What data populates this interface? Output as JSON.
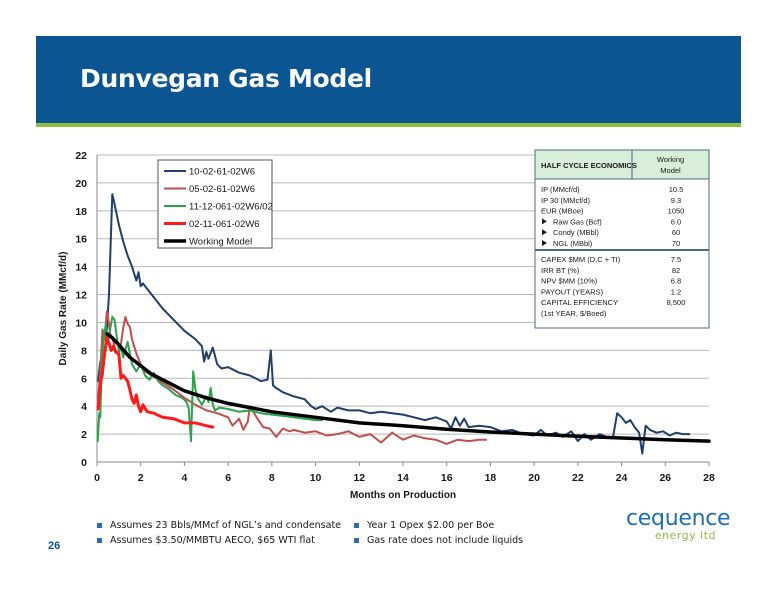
{
  "slide": {
    "title": "Dunvegan Gas Model",
    "page_number": "26",
    "notes_left": [
      "Assumes 23 Bbls/MMcf of NGL’s and condensate",
      "Assumes $3.50/MMBTU AECO, $65 WTI flat"
    ],
    "notes_right": [
      "Year 1 Opex $2.00 per Boe",
      "Gas rate does not include liquids"
    ],
    "logo_main": "cequence",
    "logo_sub": "energy ltd",
    "colors": {
      "header": "#0c5593",
      "accent": "#8dbf3f"
    }
  },
  "chart_data": {
    "type": "line",
    "xlabel": "Months on Production",
    "ylabel": "Daily Gas Rate (MMcf/d)",
    "xlim": [
      0,
      28
    ],
    "ylim": [
      0,
      22
    ],
    "xticks": [
      0,
      2,
      4,
      6,
      8,
      10,
      12,
      14,
      16,
      18,
      20,
      22,
      24,
      26,
      28
    ],
    "yticks": [
      0,
      2,
      4,
      6,
      8,
      10,
      12,
      14,
      16,
      18,
      20,
      22
    ],
    "grid": "horizontal",
    "legend_position": "top-left",
    "series": [
      {
        "name": "10-02-61-02W6",
        "color": "#1f3f6e",
        "width": 2,
        "x": [
          0.05,
          0.15,
          0.25,
          0.35,
          0.45,
          0.55,
          0.62,
          0.7,
          0.8,
          1.0,
          1.2,
          1.4,
          1.6,
          1.8,
          1.9,
          2.0,
          2.1,
          2.5,
          3.0,
          3.5,
          4.0,
          4.5,
          4.8,
          4.9,
          5.0,
          5.1,
          5.3,
          5.5,
          5.7,
          6.0,
          6.5,
          7.0,
          7.5,
          7.8,
          7.95,
          8.05,
          8.2,
          8.5,
          9.0,
          9.5,
          9.8,
          10.0,
          10.3,
          10.7,
          11.0,
          11.5,
          12.0,
          12.5,
          13.0,
          13.5,
          14.0,
          14.5,
          15.0,
          15.5,
          16.0,
          16.2,
          16.4,
          16.6,
          16.8,
          17.0,
          17.5,
          18.0,
          18.5,
          19.0,
          19.5,
          20.0,
          20.3,
          20.6,
          21.0,
          21.3,
          21.7,
          22.0,
          22.3,
          22.6,
          23.0,
          23.3,
          23.6,
          23.8,
          24.0,
          24.2,
          24.4,
          24.6,
          24.8,
          24.95,
          25.1,
          25.3,
          25.6,
          25.9,
          26.2,
          26.5,
          26.8,
          27.1
        ],
        "y": [
          5.8,
          7.2,
          6.1,
          7.8,
          9.5,
          12.0,
          15.5,
          19.2,
          18.5,
          17.0,
          15.8,
          14.8,
          14.0,
          13.0,
          13.6,
          12.6,
          12.8,
          12.0,
          11.0,
          10.2,
          9.4,
          8.8,
          8.3,
          7.2,
          7.9,
          7.4,
          8.2,
          7.0,
          6.7,
          6.8,
          6.4,
          6.2,
          5.8,
          5.9,
          8.0,
          5.5,
          5.3,
          5.0,
          4.7,
          4.5,
          4.0,
          3.8,
          4.0,
          3.6,
          3.9,
          3.7,
          3.7,
          3.5,
          3.6,
          3.5,
          3.4,
          3.2,
          3.0,
          3.2,
          2.9,
          2.4,
          3.2,
          2.6,
          3.1,
          2.5,
          2.6,
          2.5,
          2.2,
          2.3,
          2.0,
          1.9,
          2.3,
          1.9,
          2.1,
          1.8,
          2.2,
          1.5,
          2.0,
          1.6,
          2.0,
          1.8,
          1.7,
          3.5,
          3.2,
          2.8,
          3.0,
          2.5,
          2.1,
          0.6,
          2.6,
          2.3,
          2.1,
          2.2,
          1.9,
          2.1,
          2.0,
          2.0
        ]
      },
      {
        "name": "05-02-61-02W6",
        "color": "#c0504d",
        "width": 2,
        "x": [
          0.05,
          0.15,
          0.25,
          0.35,
          0.45,
          0.5,
          0.6,
          0.7,
          0.85,
          1.0,
          1.1,
          1.2,
          1.3,
          1.4,
          1.5,
          1.6,
          1.8,
          2.0,
          2.2,
          2.5,
          3.0,
          3.5,
          4.0,
          4.5,
          5.0,
          5.5,
          6.0,
          6.2,
          6.5,
          6.7,
          6.9,
          7.0,
          7.3,
          7.6,
          7.9,
          8.2,
          8.5,
          8.8,
          9.0,
          9.5,
          10.0,
          10.5,
          11.0,
          11.5,
          12.0,
          12.5,
          13.0,
          13.5,
          14.0,
          14.5,
          15.0,
          15.5,
          16.0,
          16.5,
          17.0,
          17.5,
          17.8
        ],
        "y": [
          4.5,
          6.5,
          9.5,
          8.8,
          10.8,
          10.5,
          9.2,
          8.9,
          8.0,
          7.8,
          8.5,
          9.6,
          10.4,
          9.9,
          9.7,
          8.8,
          7.8,
          7.0,
          6.5,
          6.2,
          5.7,
          5.2,
          4.6,
          4.1,
          3.7,
          3.5,
          3.2,
          2.6,
          3.1,
          2.3,
          2.9,
          4.0,
          3.2,
          2.5,
          2.4,
          1.8,
          2.4,
          2.2,
          2.3,
          2.1,
          2.2,
          1.9,
          2.0,
          2.2,
          1.8,
          2.0,
          1.4,
          2.1,
          1.6,
          1.9,
          1.7,
          1.6,
          1.3,
          1.6,
          1.5,
          1.6,
          1.6
        ]
      },
      {
        "name": "11-12-061-02W6/02",
        "color": "#2ca24a",
        "width": 2,
        "x": [
          0.03,
          0.1,
          0.15,
          0.2,
          0.3,
          0.4,
          0.5,
          0.6,
          0.7,
          0.8,
          0.9,
          1.0,
          1.1,
          1.2,
          1.4,
          1.6,
          1.8,
          2.0,
          2.2,
          2.4,
          2.6,
          2.8,
          3.0,
          3.3,
          3.6,
          3.9,
          4.1,
          4.2,
          4.3,
          4.4,
          4.5,
          4.6,
          4.8,
          5.0,
          5.1,
          5.2,
          5.3,
          5.4,
          5.6,
          6.0,
          6.5,
          7.0,
          7.5,
          8.0,
          8.5,
          9.0,
          9.5,
          10.0,
          10.3
        ],
        "y": [
          1.5,
          3.5,
          3.2,
          6.5,
          9.0,
          9.8,
          8.5,
          9.5,
          10.4,
          10.2,
          9.0,
          8.0,
          8.2,
          7.5,
          8.6,
          7.0,
          6.5,
          7.0,
          6.2,
          5.9,
          6.4,
          5.8,
          5.5,
          5.2,
          4.8,
          4.6,
          4.3,
          3.8,
          1.5,
          6.5,
          5.2,
          4.6,
          4.1,
          4.7,
          4.3,
          5.3,
          4.1,
          3.7,
          3.9,
          3.8,
          3.6,
          3.7,
          3.5,
          3.4,
          3.3,
          3.2,
          3.1,
          3.0,
          3.0
        ]
      },
      {
        "name": "02-11-061-02W6",
        "color": "#ff1a1a",
        "width": 3,
        "x": [
          0.05,
          0.15,
          0.25,
          0.35,
          0.45,
          0.55,
          0.65,
          0.75,
          0.85,
          1.0,
          1.1,
          1.2,
          1.4,
          1.5,
          1.6,
          1.7,
          1.8,
          1.9,
          2.0,
          2.1,
          2.3,
          2.6,
          3.0,
          3.5,
          4.0,
          4.5,
          5.0,
          5.3
        ],
        "y": [
          3.8,
          5.5,
          6.5,
          7.8,
          8.9,
          8.5,
          8.0,
          8.3,
          7.9,
          7.7,
          6.0,
          6.2,
          5.8,
          5.2,
          4.5,
          4.2,
          4.8,
          4.0,
          3.6,
          4.1,
          3.6,
          3.5,
          3.2,
          3.1,
          2.8,
          2.8,
          2.6,
          2.5
        ]
      },
      {
        "name": "Working Model",
        "color": "#000000",
        "width": 3.5,
        "x": [
          0.45,
          0.7,
          1.0,
          1.5,
          2.0,
          2.5,
          3.0,
          4.0,
          5.0,
          6.0,
          7.0,
          8.0,
          10.0,
          12.0,
          14.0,
          16.0,
          18.0,
          20.0,
          22.0,
          24.0,
          26.0,
          28.0
        ],
        "y": [
          9.2,
          8.9,
          8.4,
          7.5,
          6.9,
          6.3,
          5.9,
          5.1,
          4.6,
          4.2,
          3.9,
          3.6,
          3.2,
          2.8,
          2.6,
          2.35,
          2.15,
          2.0,
          1.85,
          1.72,
          1.6,
          1.5
        ]
      }
    ],
    "half_cycle_economics": {
      "header_left": "HALF CYCLE ECONOMICS",
      "header_right_lines": [
        "Working",
        "Model"
      ],
      "group1": [
        {
          "label": "IP (MMcf/d)",
          "value": "10.5",
          "bullet": false
        },
        {
          "label": "IP 30 (MMcf/d)",
          "value": "9.3",
          "bullet": false
        },
        {
          "label": "EUR (MBoe)",
          "value": "1050",
          "bullet": false
        },
        {
          "label": "Raw Gas (Bcf)",
          "value": "6.0",
          "bullet": true
        },
        {
          "label": "Condy (MBbl)",
          "value": "60",
          "bullet": true
        },
        {
          "label": "NGL (MBbl)",
          "value": "70",
          "bullet": true
        }
      ],
      "group2": [
        {
          "label": "CAPEX $MM (D,C + TI)",
          "value": "7.5"
        },
        {
          "label": "IRR BT (%)",
          "value": "82"
        },
        {
          "label": "NPV $MM (10%)",
          "value": "6.8"
        },
        {
          "label": "PAYOUT (YEARS)",
          "value": "1.2"
        },
        {
          "label": "CAPITAL EFFICIENCY",
          "value": "8,500"
        },
        {
          "label": "(1st YEAR, $/Boed)",
          "value": ""
        }
      ],
      "colors": {
        "header_bg": "#d8eed8",
        "border": "#4a6b8a"
      }
    }
  }
}
